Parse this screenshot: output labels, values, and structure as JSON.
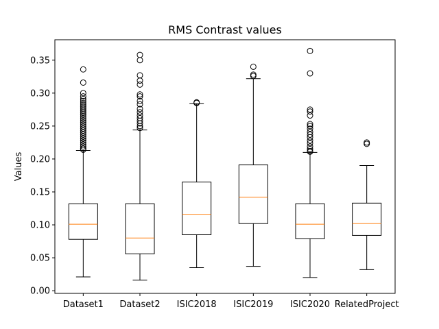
{
  "chart_data": {
    "type": "boxplot",
    "title": "RMS Contrast values",
    "xlabel": "",
    "ylabel": "Values",
    "ylim": [
      -0.004,
      0.381
    ],
    "yticks": [
      0.0,
      0.05,
      0.1,
      0.15,
      0.2,
      0.25,
      0.3,
      0.35
    ],
    "ytick_labels": [
      "0.00",
      "0.05",
      "0.10",
      "0.15",
      "0.20",
      "0.25",
      "0.30",
      "0.35"
    ],
    "grid": false,
    "median_color": "#ff7f0e",
    "box_color": "#000000",
    "categories": [
      "Dataset1",
      "Dataset2",
      "ISIC2018",
      "ISIC2019",
      "ISIC2020",
      "RelatedProject"
    ],
    "boxes": [
      {
        "label": "Dataset1",
        "whislo": 0.021,
        "q1": 0.078,
        "median": 0.101,
        "q3": 0.132,
        "whishi": 0.213,
        "fliers": [
          0.336,
          0.316,
          0.3,
          0.295,
          0.291,
          0.288,
          0.285,
          0.282,
          0.279,
          0.276,
          0.273,
          0.27,
          0.267,
          0.264,
          0.261,
          0.258,
          0.255,
          0.252,
          0.249,
          0.246,
          0.243,
          0.24,
          0.237,
          0.234,
          0.231,
          0.228,
          0.225,
          0.222,
          0.219,
          0.216,
          0.214
        ]
      },
      {
        "label": "Dataset2",
        "whislo": 0.016,
        "q1": 0.056,
        "median": 0.08,
        "q3": 0.132,
        "whishi": 0.244,
        "fliers": [
          0.358,
          0.35,
          0.327,
          0.319,
          0.313,
          0.298,
          0.295,
          0.288,
          0.283,
          0.276,
          0.271,
          0.266,
          0.262,
          0.258,
          0.254,
          0.25,
          0.247
        ]
      },
      {
        "label": "ISIC2018",
        "whislo": 0.035,
        "q1": 0.085,
        "median": 0.116,
        "q3": 0.165,
        "whishi": 0.284,
        "fliers": [
          0.286,
          0.285
        ]
      },
      {
        "label": "ISIC2019",
        "whislo": 0.037,
        "q1": 0.102,
        "median": 0.142,
        "q3": 0.191,
        "whishi": 0.322,
        "fliers": [
          0.34,
          0.328,
          0.326
        ]
      },
      {
        "label": "ISIC2020",
        "whislo": 0.02,
        "q1": 0.079,
        "median": 0.101,
        "q3": 0.132,
        "whishi": 0.21,
        "fliers": [
          0.364,
          0.33,
          0.275,
          0.272,
          0.266,
          0.253,
          0.25,
          0.246,
          0.241,
          0.237,
          0.233,
          0.228,
          0.224,
          0.219,
          0.215,
          0.212,
          0.211
        ]
      },
      {
        "label": "RelatedProject",
        "whislo": 0.032,
        "q1": 0.084,
        "median": 0.102,
        "q3": 0.133,
        "whishi": 0.19,
        "fliers": [
          0.225,
          0.223
        ]
      }
    ]
  }
}
